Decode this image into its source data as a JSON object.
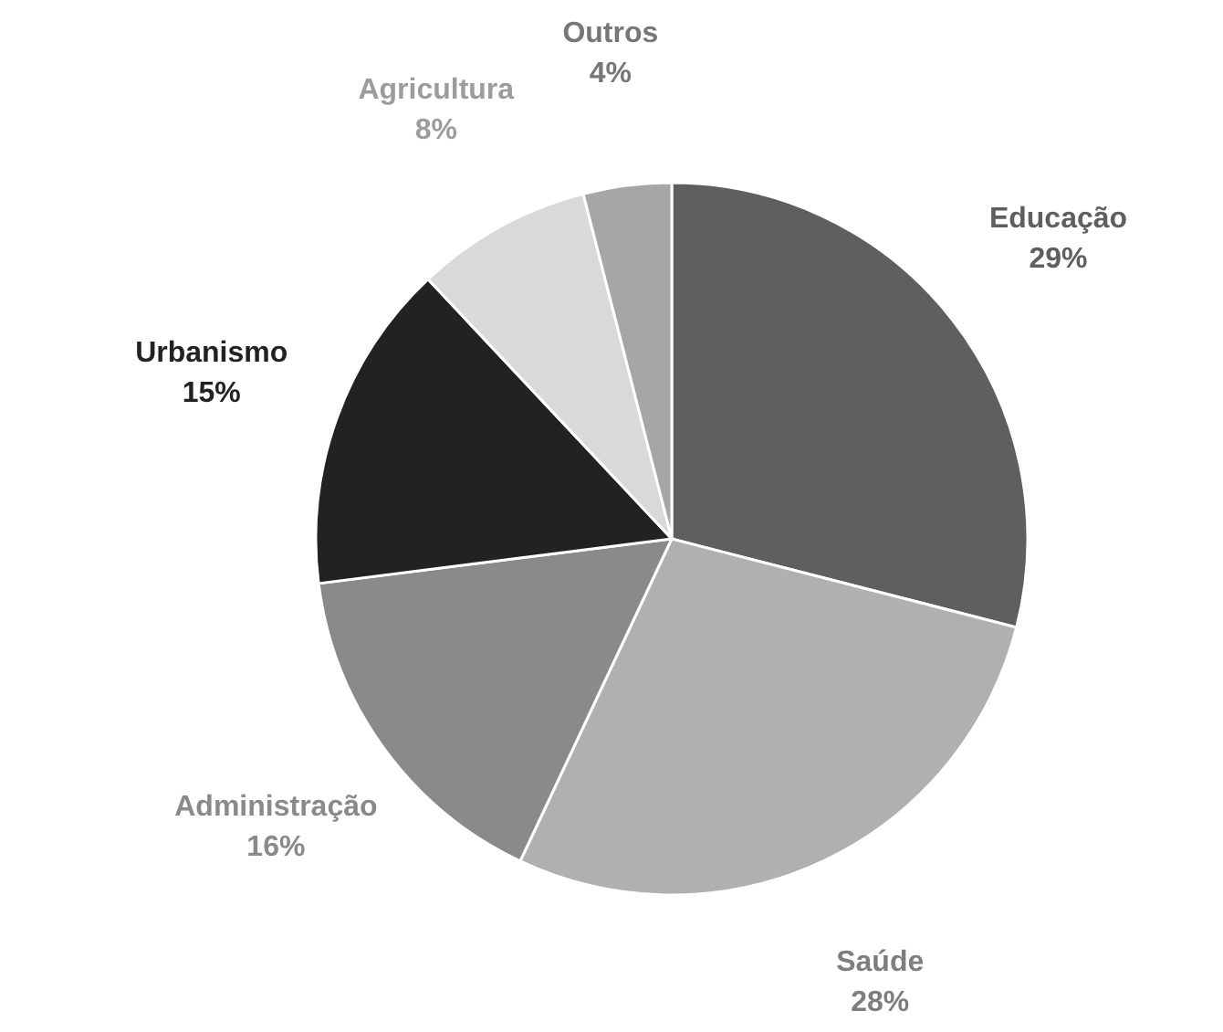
{
  "chart_data": {
    "type": "pie",
    "categories": [
      "Educação",
      "Saúde",
      "Administração",
      "Urbanismo",
      "Agricultura",
      "Outros"
    ],
    "values": [
      29,
      28,
      16,
      15,
      8,
      4
    ],
    "value_labels": [
      "29%",
      "28%",
      "16%",
      "15%",
      "8%",
      "4%"
    ],
    "colors": [
      "#5f5f5f",
      "#b0b0b0",
      "#8a8a8a",
      "#222222",
      "#d9d9d9",
      "#a6a6a6"
    ]
  }
}
